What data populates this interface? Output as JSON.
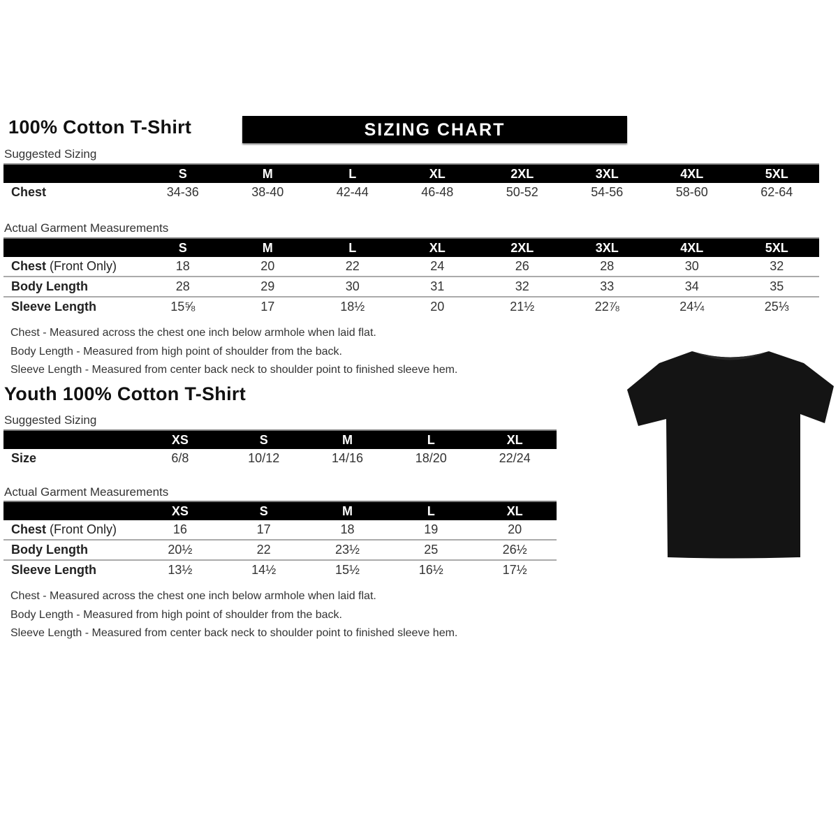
{
  "banner": "SIZING CHART",
  "adult": {
    "title": "100% Cotton T-Shirt",
    "suggested_label": "Suggested Sizing",
    "sizes": [
      "S",
      "M",
      "L",
      "XL",
      "2XL",
      "3XL",
      "4XL",
      "5XL"
    ],
    "suggested_rows": [
      {
        "label": "Chest",
        "values": [
          "34-36",
          "38-40",
          "42-44",
          "46-48",
          "50-52",
          "54-56",
          "58-60",
          "62-64"
        ]
      }
    ],
    "actual_label": "Actual Garment Measurements",
    "actual_rows": [
      {
        "label": "Chest",
        "label_suffix": " (Front Only)",
        "values": [
          "18",
          "20",
          "22",
          "24",
          "26",
          "28",
          "30",
          "32"
        ]
      },
      {
        "label": "Body Length",
        "label_suffix": "",
        "values": [
          "28",
          "29",
          "30",
          "31",
          "32",
          "33",
          "34",
          "35"
        ]
      },
      {
        "label": "Sleeve Length",
        "label_suffix": "",
        "values": [
          "15⅝",
          "17",
          "18½",
          "20",
          "21½",
          "22⅞",
          "24¼",
          "25⅓"
        ]
      }
    ],
    "notes": [
      "Chest - Measured across the chest one inch below armhole when laid flat.",
      "Body Length - Measured from high point of shoulder from the back.",
      "Sleeve Length - Measured from center back neck to shoulder point to finished sleeve hem."
    ]
  },
  "youth": {
    "title": "Youth 100% Cotton T-Shirt",
    "suggested_label": "Suggested Sizing",
    "sizes": [
      "XS",
      "S",
      "M",
      "L",
      "XL"
    ],
    "suggested_rows": [
      {
        "label": "Size",
        "values": [
          "6/8",
          "10/12",
          "14/16",
          "18/20",
          "22/24"
        ]
      }
    ],
    "actual_label": "Actual Garment Measurements",
    "actual_rows": [
      {
        "label": "Chest",
        "label_suffix": " (Front Only)",
        "values": [
          "16",
          "17",
          "18",
          "19",
          "20"
        ]
      },
      {
        "label": "Body Length",
        "label_suffix": "",
        "values": [
          "20½",
          "22",
          "23½",
          "25",
          "26½"
        ]
      },
      {
        "label": "Sleeve Length",
        "label_suffix": "",
        "values": [
          "13½",
          "14½",
          "15½",
          "16½",
          "17½"
        ]
      }
    ],
    "notes": [
      "Chest - Measured across the chest one inch below armhole when laid flat.",
      "Body Length - Measured from high point of shoulder from the back.",
      "Sleeve Length - Measured from center back neck to shoulder point to finished sleeve hem."
    ]
  },
  "tshirt_image": {
    "icon": "tshirt-icon",
    "color": "#111111"
  }
}
